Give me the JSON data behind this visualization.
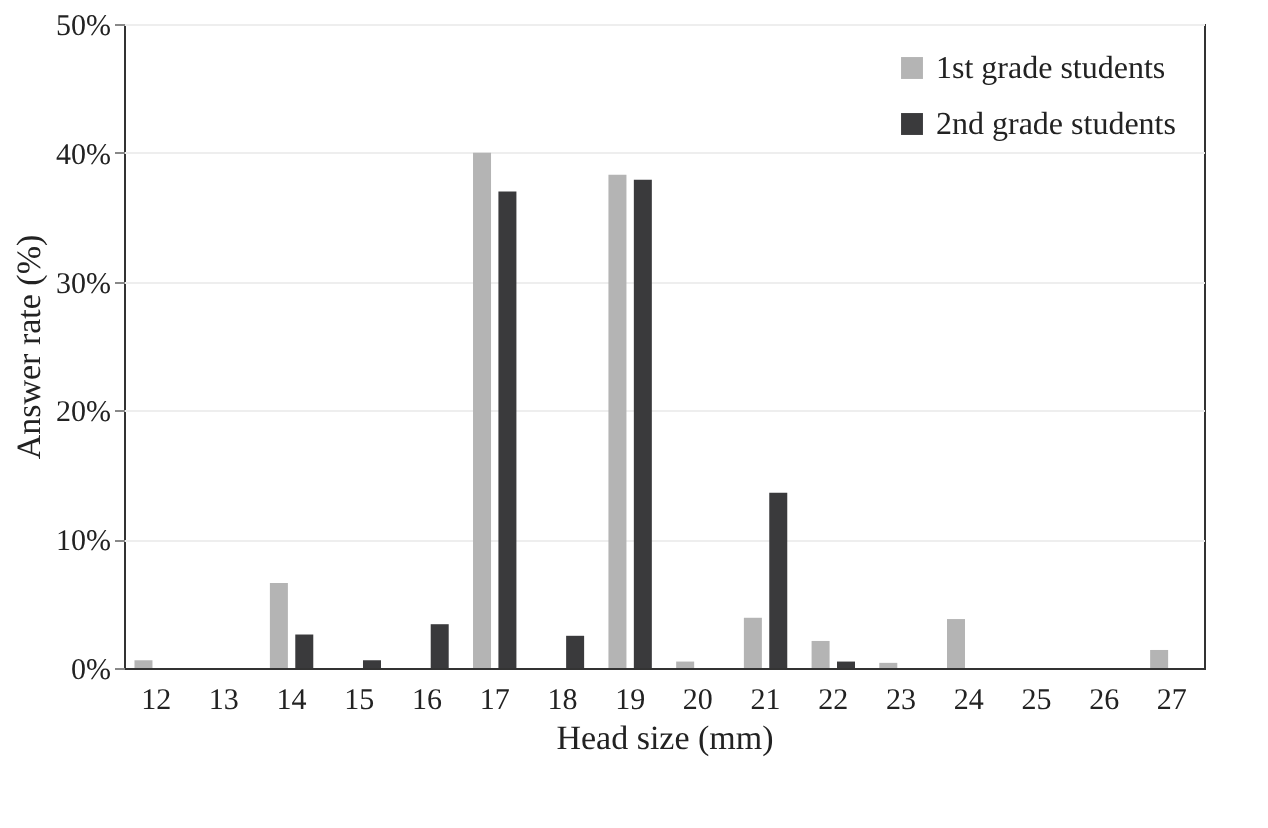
{
  "chart_data": {
    "type": "bar",
    "xlabel": "Head size (mm)",
    "ylabel": "Answer rate  (%)",
    "categories": [
      "12",
      "13",
      "14",
      "15",
      "16",
      "17",
      "18",
      "19",
      "20",
      "21",
      "22",
      "23",
      "24",
      "25",
      "26",
      "27"
    ],
    "series": [
      {
        "name": "1st grade students",
        "color": "#b4b4b4",
        "values": [
          0.6,
          0,
          6.6,
          0,
          0,
          40,
          0,
          38.3,
          0.5,
          3.9,
          2.1,
          0.4,
          3.8,
          0,
          0,
          1.4
        ]
      },
      {
        "name": "2nd grade students",
        "color": "#3a3a3c",
        "values": [
          0,
          0,
          2.6,
          0.6,
          3.4,
          37,
          2.5,
          37.9,
          0,
          13.6,
          0.5,
          0,
          0,
          0,
          0,
          0
        ]
      }
    ],
    "ylim": [
      0,
      50
    ],
    "yticks": [
      {
        "value": 0,
        "label": "0%"
      },
      {
        "value": 10,
        "label": "10%"
      },
      {
        "value": 20,
        "label": "20%"
      },
      {
        "value": 30,
        "label": "30%"
      },
      {
        "value": 40,
        "label": "40%"
      },
      {
        "value": 50,
        "label": "50%"
      }
    ],
    "grid": "y",
    "legend": "top right"
  }
}
